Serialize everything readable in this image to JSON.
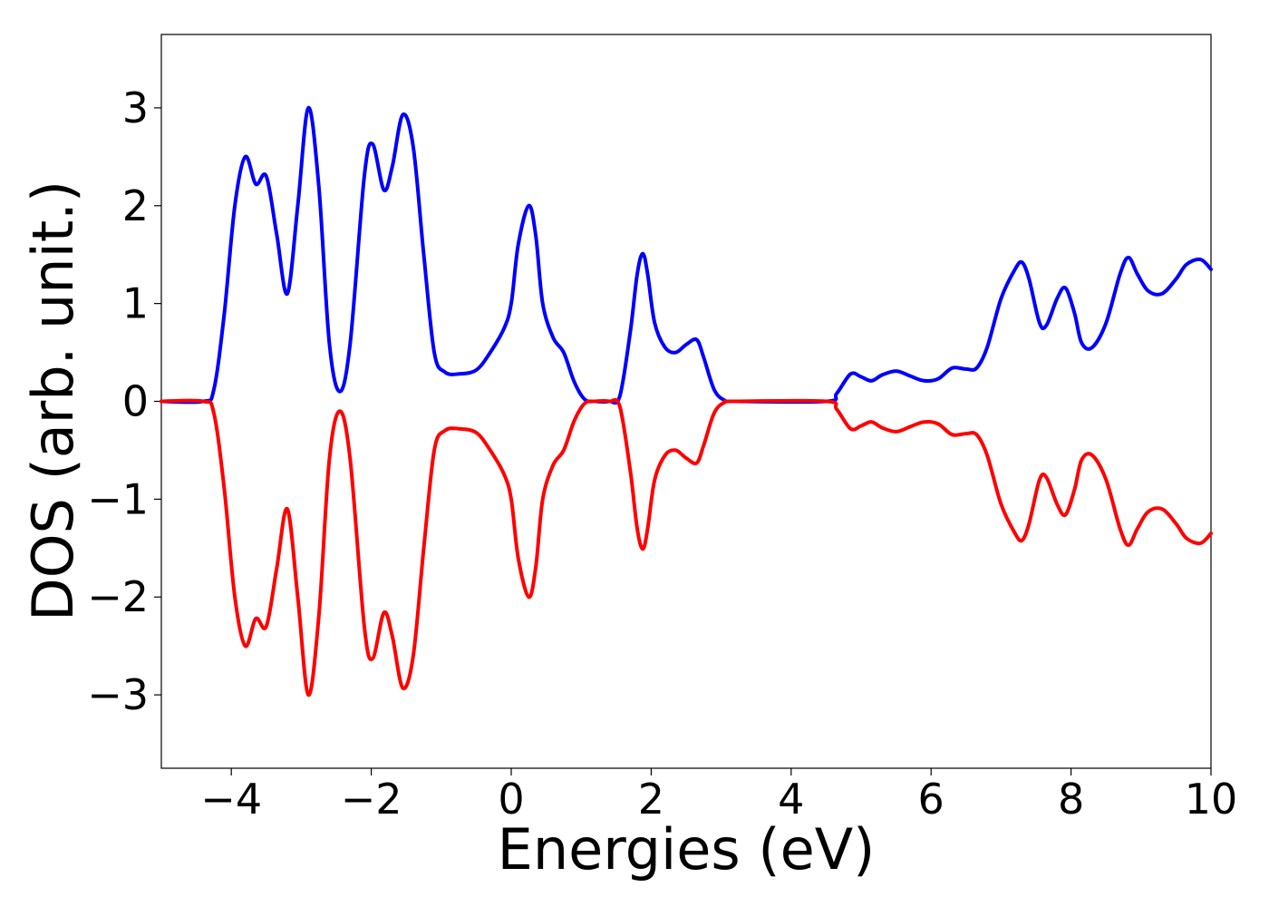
{
  "chart_data": {
    "type": "line",
    "title": "",
    "xlabel": "Energies (eV)",
    "ylabel": "DOS (arb. unit.)",
    "xlim": [
      -5,
      10
    ],
    "ylim": [
      -3.75,
      3.75
    ],
    "xticks": [
      -4,
      -2,
      0,
      2,
      4,
      6,
      8,
      10
    ],
    "yticks": [
      -3,
      -2,
      -1,
      0,
      1,
      2,
      3
    ],
    "grid": false,
    "legend": "none",
    "series": [
      {
        "color": "#0000ff",
        "points": [
          [
            -5.0,
            0.0
          ],
          [
            -4.4,
            0.0
          ],
          [
            -4.25,
            0.12
          ],
          [
            -4.1,
            0.9
          ],
          [
            -3.95,
            2.0
          ],
          [
            -3.8,
            2.5
          ],
          [
            -3.65,
            2.22
          ],
          [
            -3.5,
            2.3
          ],
          [
            -3.35,
            1.7
          ],
          [
            -3.2,
            1.1
          ],
          [
            -3.05,
            2.0
          ],
          [
            -2.9,
            3.0
          ],
          [
            -2.75,
            2.2
          ],
          [
            -2.6,
            0.6
          ],
          [
            -2.45,
            0.1
          ],
          [
            -2.3,
            0.6
          ],
          [
            -2.1,
            2.3
          ],
          [
            -1.98,
            2.63
          ],
          [
            -1.82,
            2.16
          ],
          [
            -1.7,
            2.4
          ],
          [
            -1.55,
            2.93
          ],
          [
            -1.4,
            2.6
          ],
          [
            -1.25,
            1.5
          ],
          [
            -1.1,
            0.5
          ],
          [
            -0.95,
            0.3
          ],
          [
            -0.75,
            0.28
          ],
          [
            -0.5,
            0.32
          ],
          [
            -0.3,
            0.5
          ],
          [
            -0.1,
            0.75
          ],
          [
            0.0,
            1.0
          ],
          [
            0.1,
            1.6
          ],
          [
            0.25,
            2.0
          ],
          [
            0.35,
            1.7
          ],
          [
            0.45,
            1.0
          ],
          [
            0.6,
            0.65
          ],
          [
            0.75,
            0.5
          ],
          [
            0.9,
            0.2
          ],
          [
            1.05,
            0.02
          ],
          [
            1.2,
            0.0
          ],
          [
            1.4,
            0.0
          ],
          [
            1.55,
            0.05
          ],
          [
            1.7,
            0.7
          ],
          [
            1.8,
            1.3
          ],
          [
            1.88,
            1.51
          ],
          [
            1.95,
            1.3
          ],
          [
            2.05,
            0.8
          ],
          [
            2.2,
            0.55
          ],
          [
            2.35,
            0.5
          ],
          [
            2.5,
            0.58
          ],
          [
            2.65,
            0.63
          ],
          [
            2.75,
            0.45
          ],
          [
            2.9,
            0.12
          ],
          [
            3.05,
            0.01
          ],
          [
            3.2,
            0.0
          ],
          [
            4.5,
            0.0
          ],
          [
            4.65,
            0.08
          ],
          [
            4.85,
            0.28
          ],
          [
            5.0,
            0.25
          ],
          [
            5.15,
            0.21
          ],
          [
            5.3,
            0.27
          ],
          [
            5.5,
            0.31
          ],
          [
            5.7,
            0.26
          ],
          [
            5.9,
            0.21
          ],
          [
            6.1,
            0.23
          ],
          [
            6.3,
            0.34
          ],
          [
            6.5,
            0.33
          ],
          [
            6.65,
            0.34
          ],
          [
            6.8,
            0.55
          ],
          [
            7.0,
            1.05
          ],
          [
            7.2,
            1.35
          ],
          [
            7.3,
            1.42
          ],
          [
            7.4,
            1.25
          ],
          [
            7.55,
            0.8
          ],
          [
            7.65,
            0.78
          ],
          [
            7.8,
            1.05
          ],
          [
            7.92,
            1.16
          ],
          [
            8.05,
            0.9
          ],
          [
            8.15,
            0.6
          ],
          [
            8.3,
            0.55
          ],
          [
            8.5,
            0.8
          ],
          [
            8.7,
            1.3
          ],
          [
            8.82,
            1.47
          ],
          [
            8.95,
            1.3
          ],
          [
            9.1,
            1.13
          ],
          [
            9.3,
            1.1
          ],
          [
            9.5,
            1.25
          ],
          [
            9.65,
            1.4
          ],
          [
            9.85,
            1.45
          ],
          [
            10.0,
            1.35
          ]
        ]
      },
      {
        "color": "#ff0000",
        "mirror_of_previous": true
      }
    ]
  }
}
